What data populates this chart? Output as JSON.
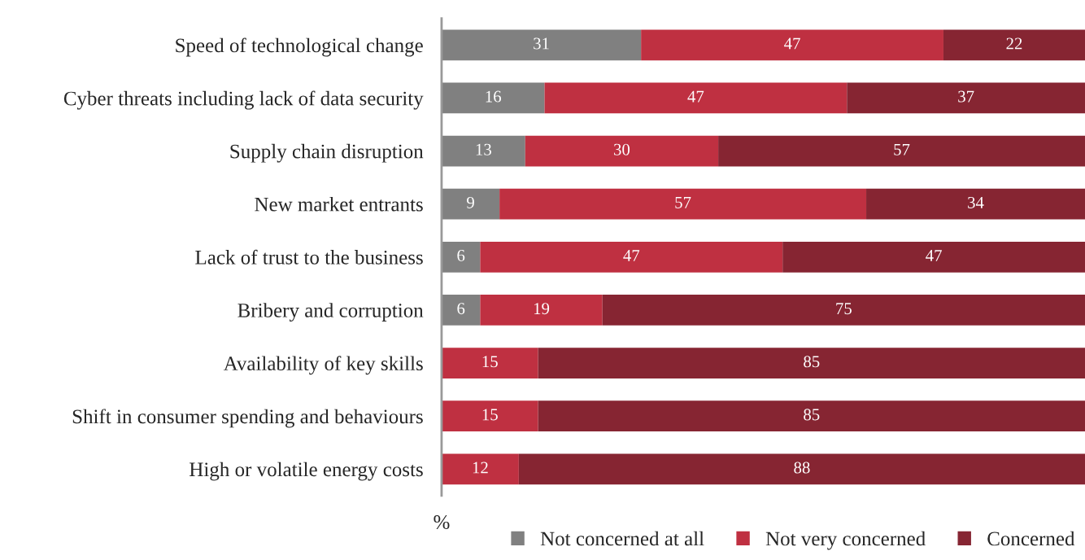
{
  "chart_data": {
    "type": "bar",
    "orientation": "horizontal",
    "stacked": true,
    "xlabel": "%",
    "categories": [
      "Speed of technological change",
      "Cyber threats including lack of data security",
      "Supply chain disruption",
      "New market entrants",
      "Lack of trust to the business",
      "Bribery and corruption",
      "Availability of key skills",
      "Shift in consumer spending and behaviours",
      "High or volatile energy costs"
    ],
    "series": [
      {
        "name": "Not concerned at all",
        "color": "#808080",
        "values": [
          31,
          16,
          13,
          9,
          6,
          6,
          null,
          null,
          null
        ]
      },
      {
        "name": "Not very concerned",
        "color": "#bf3041",
        "values": [
          47,
          47,
          30,
          57,
          47,
          19,
          15,
          15,
          12
        ]
      },
      {
        "name": "Concerned",
        "color": "#862532",
        "values": [
          22,
          37,
          57,
          34,
          47,
          75,
          85,
          85,
          88
        ]
      }
    ],
    "xlim": [
      0,
      100
    ],
    "data_labels": true,
    "legend": "bottom",
    "grid": false,
    "tick_labels": "y"
  }
}
